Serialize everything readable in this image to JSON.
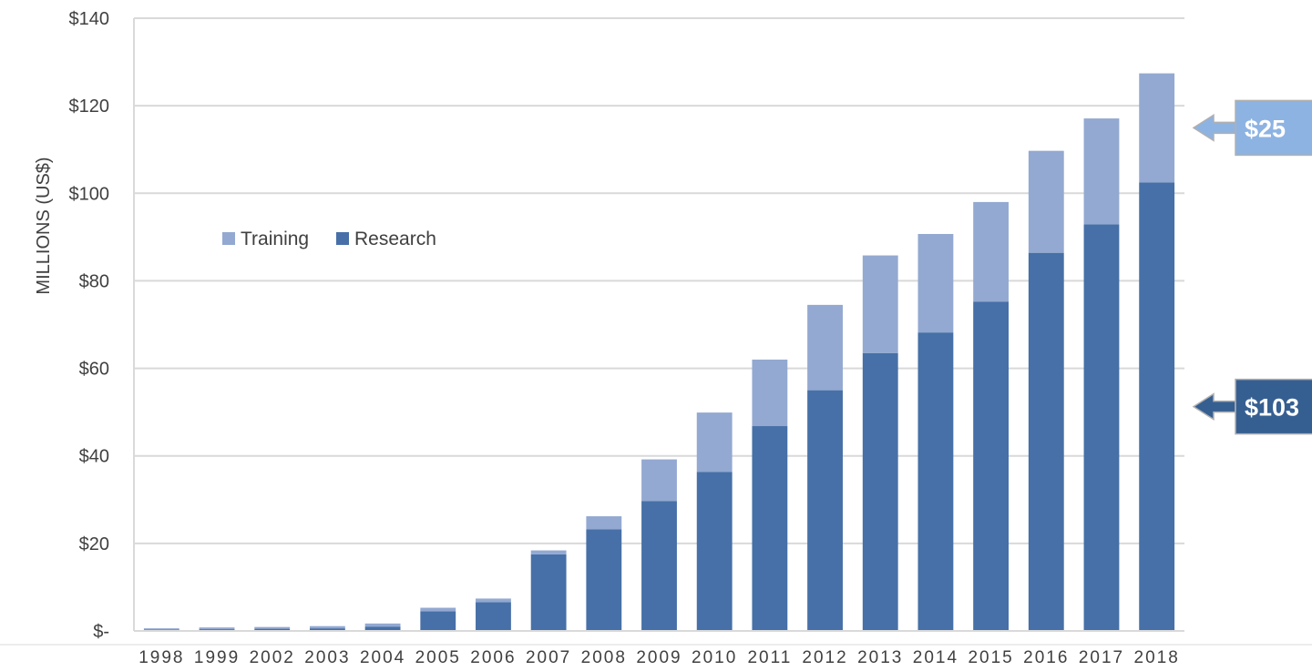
{
  "chart_data": {
    "type": "bar",
    "stacked": true,
    "title": "",
    "xlabel": "",
    "ylabel": "MILLIONS (US$)",
    "ylim": [
      0,
      140
    ],
    "y_ticks": [
      {
        "value": 0,
        "label": "$-"
      },
      {
        "value": 20,
        "label": "$20"
      },
      {
        "value": 40,
        "label": "$40"
      },
      {
        "value": 60,
        "label": "$60"
      },
      {
        "value": 80,
        "label": "$80"
      },
      {
        "value": 100,
        "label": "$100"
      },
      {
        "value": 120,
        "label": "$120"
      },
      {
        "value": 140,
        "label": "$140"
      }
    ],
    "grid": true,
    "legend_position": "left-middle",
    "categories": [
      "1998",
      "1999",
      "2002",
      "2003",
      "2004",
      "2005",
      "2006",
      "2007",
      "2008",
      "2009",
      "2010",
      "2011",
      "2012",
      "2013",
      "2014",
      "2015",
      "2016",
      "2017",
      "2018"
    ],
    "series": [
      {
        "name": "Research",
        "color": "#4670A7",
        "values": [
          0.3,
          0.4,
          0.5,
          0.6,
          1.0,
          4.5,
          6.6,
          17.5,
          23.2,
          29.7,
          36.3,
          46.8,
          55.0,
          63.5,
          68.2,
          75.2,
          86.4,
          92.9,
          102.5
        ]
      },
      {
        "name": "Training",
        "color": "#93A9D1",
        "values": [
          0.3,
          0.4,
          0.4,
          0.5,
          0.7,
          0.8,
          0.8,
          0.9,
          3.0,
          9.5,
          13.6,
          15.2,
          19.5,
          22.3,
          22.5,
          22.8,
          23.3,
          24.2,
          24.9
        ]
      }
    ],
    "annotations": [
      {
        "label": "$25",
        "series": "Training",
        "color": "#8DB3E2"
      },
      {
        "label": "$103",
        "series": "Research",
        "color": "#365F91"
      }
    ]
  }
}
